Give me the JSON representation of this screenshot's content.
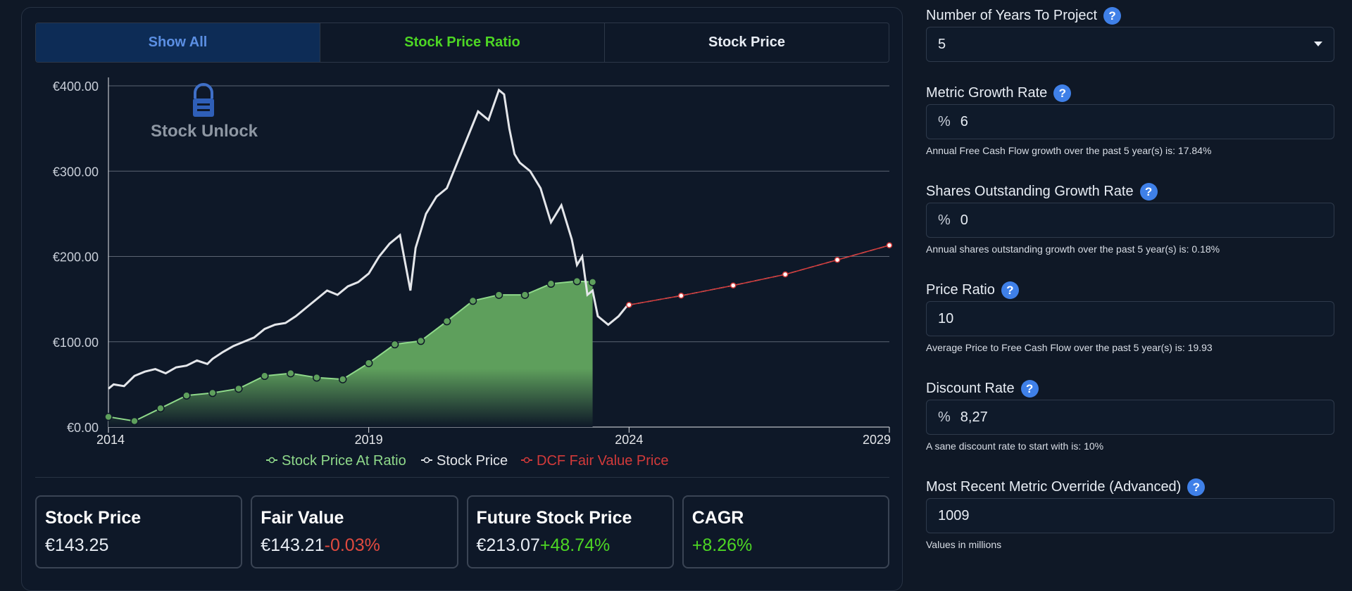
{
  "tabs": {
    "show_all": "Show All",
    "ratio": "Stock Price Ratio",
    "price": "Stock Price"
  },
  "chart_data": {
    "type": "line",
    "watermark": "Stock Unlock",
    "y_ticks": [
      "€400.00",
      "€300.00",
      "€200.00",
      "€100.00",
      "€0.00"
    ],
    "x_ticks": [
      "2014",
      "2019",
      "2024",
      "2029"
    ],
    "ylim": [
      0,
      400
    ],
    "xlim": [
      2014,
      2029
    ],
    "grid": true,
    "legend_position": "bottom-center",
    "series": [
      {
        "name": "Stock Price At Ratio",
        "type": "area",
        "color": "#8fd98a",
        "x": [
          2014.0,
          2014.5,
          2015.0,
          2015.5,
          2016.0,
          2016.5,
          2017.0,
          2017.5,
          2018.0,
          2018.5,
          2019.0,
          2019.5,
          2020.0,
          2020.5,
          2021.0,
          2021.5,
          2022.0,
          2022.5,
          2023.0,
          2023.3
        ],
        "y": [
          12,
          7,
          22,
          37,
          40,
          45,
          60,
          63,
          58,
          56,
          75,
          97,
          101,
          124,
          148,
          155,
          155,
          168,
          171,
          170
        ]
      },
      {
        "name": "Stock Price",
        "color": "#e4e6ea",
        "x": [
          2014.0,
          2014.1,
          2014.3,
          2014.5,
          2014.7,
          2014.9,
          2015.1,
          2015.3,
          2015.5,
          2015.7,
          2015.9,
          2016.0,
          2016.2,
          2016.4,
          2016.6,
          2016.8,
          2017.0,
          2017.2,
          2017.4,
          2017.6,
          2017.8,
          2018.0,
          2018.2,
          2018.4,
          2018.6,
          2018.8,
          2019.0,
          2019.2,
          2019.4,
          2019.6,
          2019.8,
          2019.9,
          2020.0,
          2020.1,
          2020.3,
          2020.5,
          2020.7,
          2020.9,
          2021.1,
          2021.3,
          2021.5,
          2021.6,
          2021.7,
          2021.8,
          2021.9,
          2022.1,
          2022.3,
          2022.5,
          2022.7,
          2022.9,
          2023.0,
          2023.1,
          2023.2,
          2023.3,
          2023.4,
          2023.6,
          2023.8,
          2024.0
        ],
        "y": [
          45,
          50,
          48,
          60,
          65,
          68,
          63,
          70,
          72,
          78,
          74,
          80,
          88,
          95,
          100,
          105,
          115,
          120,
          122,
          130,
          140,
          150,
          160,
          155,
          165,
          170,
          180,
          200,
          215,
          225,
          160,
          210,
          230,
          250,
          270,
          280,
          310,
          340,
          370,
          360,
          395,
          390,
          350,
          320,
          310,
          300,
          280,
          240,
          260,
          220,
          190,
          200,
          155,
          160,
          130,
          120,
          130,
          145
        ]
      },
      {
        "name": "DCF Fair Value Price",
        "color": "#d23a3a",
        "x": [
          2024,
          2025,
          2026,
          2027,
          2028,
          2029
        ],
        "y": [
          143.21,
          154,
          166,
          179,
          196,
          213.07
        ]
      }
    ]
  },
  "cards": [
    {
      "title": "Stock Price",
      "value": "€143.25",
      "change": ""
    },
    {
      "title": "Fair Value",
      "value": "€143.21",
      "change": "-0.03%"
    },
    {
      "title": "Future Stock Price",
      "value": "€213.07",
      "change": "+48.74%"
    },
    {
      "title": "CAGR",
      "value": "",
      "change": "+8.26%"
    }
  ],
  "form": {
    "years": {
      "label": "Number of Years To Project",
      "value": "5"
    },
    "metric_growth": {
      "label": "Metric Growth Rate",
      "prefix": "%",
      "value": "6",
      "hint": "Annual Free Cash Flow growth over the past 5 year(s) is: 17.84%"
    },
    "shares_growth": {
      "label": "Shares Outstanding Growth Rate",
      "prefix": "%",
      "value": "0",
      "hint": "Annual shares outstanding growth over the past 5 year(s) is: 0.18%"
    },
    "price_ratio": {
      "label": "Price Ratio",
      "value": "10",
      "hint": "Average Price to Free Cash Flow over the past 5 year(s) is: 19.93"
    },
    "discount": {
      "label": "Discount Rate",
      "prefix": "%",
      "value": "8,27",
      "hint": "A sane discount rate to start with is: 10%"
    },
    "override": {
      "label": "Most Recent Metric Override (Advanced)",
      "value": "1009",
      "hint": "Values in millions"
    }
  }
}
